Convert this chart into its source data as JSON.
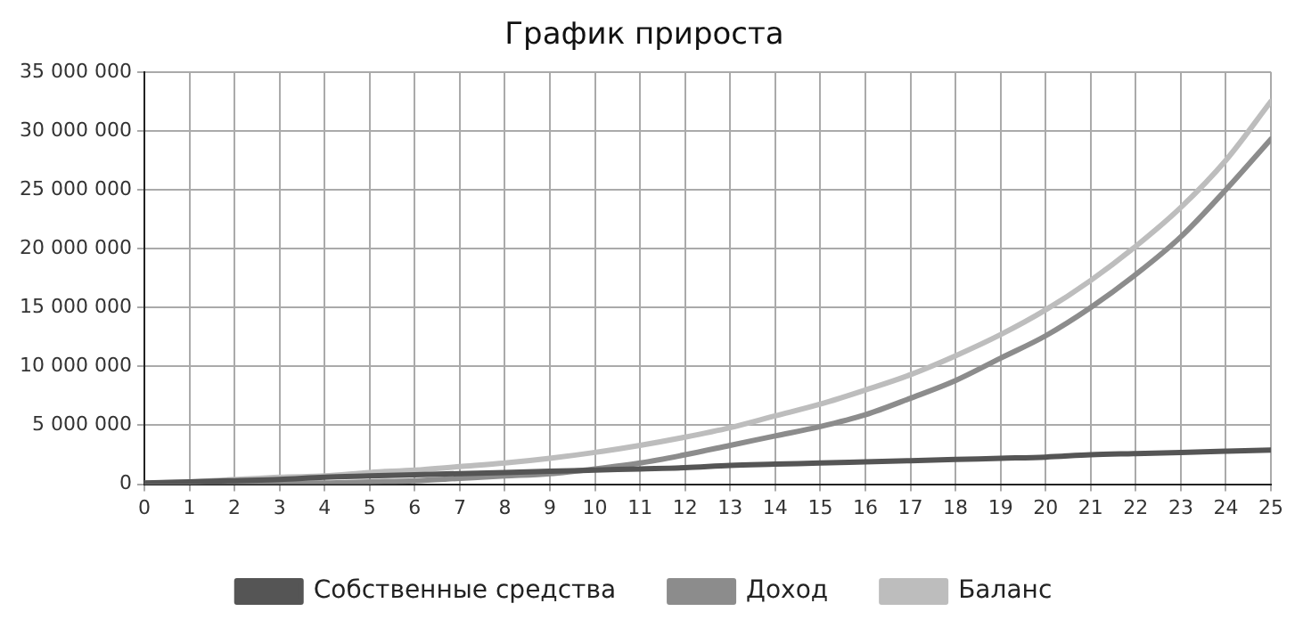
{
  "chart_data": {
    "type": "line",
    "title": "График прироста",
    "x": [
      0,
      1,
      2,
      3,
      4,
      5,
      6,
      7,
      8,
      9,
      10,
      11,
      12,
      13,
      14,
      15,
      16,
      17,
      18,
      19,
      20,
      21,
      22,
      23,
      24,
      25
    ],
    "series": [
      {
        "name": "Собственные средства",
        "color": "#555555",
        "values": [
          100000,
          200000,
          300000,
          400000,
          600000,
          700000,
          800000,
          900000,
          1000000,
          1100000,
          1200000,
          1300000,
          1400000,
          1600000,
          1700000,
          1800000,
          1900000,
          2000000,
          2100000,
          2200000,
          2300000,
          2500000,
          2600000,
          2700000,
          2800000,
          2900000
        ]
      },
      {
        "name": "Доход",
        "color": "#8c8c8c",
        "values": [
          0,
          0,
          0,
          100000,
          100000,
          200000,
          300000,
          500000,
          700000,
          900000,
          1300000,
          1800000,
          2500000,
          3300000,
          4100000,
          4900000,
          5900000,
          7300000,
          8800000,
          10700000,
          12600000,
          15000000,
          17800000,
          21000000,
          25000000,
          29300000
        ]
      },
      {
        "name": "Баланс",
        "color": "#bdbdbd",
        "values": [
          100000,
          200000,
          400000,
          600000,
          700000,
          1000000,
          1200000,
          1500000,
          1800000,
          2200000,
          2700000,
          3300000,
          4000000,
          4800000,
          5800000,
          6800000,
          8000000,
          9300000,
          10900000,
          12700000,
          14800000,
          17300000,
          20200000,
          23500000,
          27500000,
          32500000
        ]
      }
    ],
    "xlim": [
      0,
      25
    ],
    "xticks": [
      0,
      1,
      2,
      3,
      4,
      5,
      6,
      7,
      8,
      9,
      10,
      11,
      12,
      13,
      14,
      15,
      16,
      17,
      18,
      19,
      20,
      21,
      22,
      23,
      24,
      25
    ],
    "ylim": [
      0,
      35000000
    ],
    "yticks": [
      0,
      {
        "value": 5000000,
        "label": "5 000 000"
      },
      {
        "value": 10000000,
        "label": "10 000 000"
      },
      {
        "value": 15000000,
        "label": "15 000 000"
      },
      {
        "value": 20000000,
        "label": "20 000 000"
      },
      {
        "value": 25000000,
        "label": "25 000 000"
      },
      {
        "value": 30000000,
        "label": "30 000 000"
      },
      {
        "value": 35000000,
        "label": "35 000 000"
      }
    ],
    "grid": true,
    "legend": "bottom",
    "marker": "none",
    "line_style": "solid"
  }
}
